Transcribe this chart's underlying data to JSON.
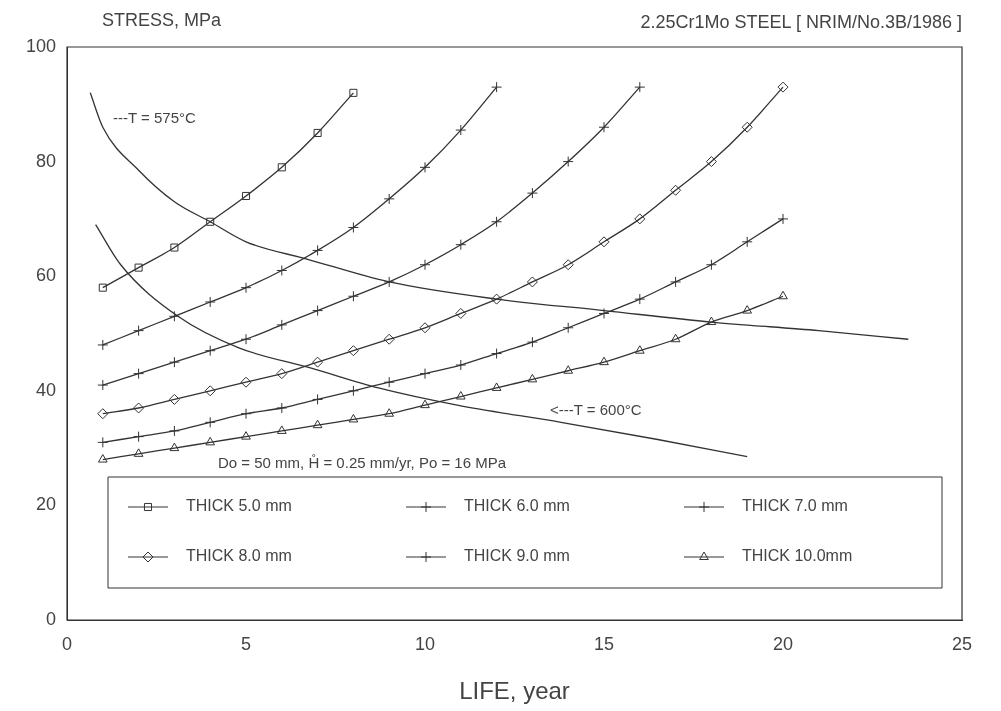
{
  "chart_data": {
    "type": "line",
    "title": "2.25Cr1Mo STEEL [ NRIM/No.3B/1986 ]",
    "ylabel": "STRESS, MPa",
    "xlabel": "LIFE, year",
    "xlim": [
      0,
      25
    ],
    "xticks": [
      0,
      5,
      10,
      15,
      20,
      25
    ],
    "ylim": [
      0,
      100
    ],
    "yticks": [
      0,
      20,
      40,
      60,
      80,
      100
    ],
    "grid": false,
    "legend": "bottom",
    "series": [
      {
        "name": "THICK 5.0 mm",
        "color": "#333333",
        "marker": "square",
        "x": [
          1,
          2,
          3,
          4,
          5,
          6,
          7,
          8
        ],
        "values": [
          58,
          61.5,
          65,
          69.5,
          74,
          79,
          85,
          92
        ]
      },
      {
        "name": "THICK 6.0 mm",
        "color": "#333333",
        "marker": "cross",
        "x": [
          1,
          2,
          3,
          4,
          5,
          6,
          7,
          8,
          9,
          10,
          11,
          12
        ],
        "values": [
          48,
          50.5,
          53,
          55.5,
          58,
          61,
          64.5,
          68.5,
          73.5,
          79,
          85.5,
          93
        ]
      },
      {
        "name": "THICK 7.0 mm",
        "color": "#333333",
        "marker": "cross",
        "x": [
          1,
          2,
          3,
          4,
          5,
          6,
          7,
          8,
          9,
          10,
          11,
          12,
          13,
          14,
          15,
          16
        ],
        "values": [
          41,
          43,
          45,
          47,
          49,
          51.5,
          54,
          56.5,
          59,
          62,
          65.5,
          69.5,
          74.5,
          80,
          86,
          93
        ]
      },
      {
        "name": "THICK 8.0 mm",
        "color": "#333333",
        "marker": "diamond",
        "x": [
          1,
          2,
          3,
          4,
          5,
          6,
          7,
          8,
          9,
          10,
          11,
          12,
          13,
          14,
          15,
          16,
          17,
          18,
          19,
          20
        ],
        "values": [
          36,
          37,
          38.5,
          40,
          41.5,
          43,
          45,
          47,
          49,
          51,
          53.5,
          56,
          59,
          62,
          66,
          70,
          75,
          80,
          86,
          93
        ]
      },
      {
        "name": "THICK 9.0 mm",
        "color": "#333333",
        "marker": "cross",
        "x": [
          1,
          2,
          3,
          4,
          5,
          6,
          7,
          8,
          9,
          10,
          11,
          12,
          13,
          14,
          15,
          16,
          17,
          18,
          19,
          20
        ],
        "values": [
          31,
          32,
          33,
          34.5,
          36,
          37,
          38.5,
          40,
          41.5,
          43,
          44.5,
          46.5,
          48.5,
          51,
          53.5,
          56,
          59,
          62,
          66,
          70
        ]
      },
      {
        "name": "THICK 10.0mm",
        "color": "#333333",
        "marker": "triangle",
        "x": [
          1,
          2,
          3,
          4,
          5,
          6,
          7,
          8,
          9,
          10,
          11,
          12,
          13,
          14,
          15,
          16,
          17,
          18,
          19,
          20
        ],
        "values": [
          28,
          29,
          30,
          31,
          32,
          33,
          34,
          35,
          36,
          37.5,
          39,
          40.5,
          42,
          43.5,
          45,
          47,
          49,
          52,
          54,
          56.5
        ]
      },
      {
        "color": "#333333",
        "marker": "none",
        "x": [
          0.65,
          1,
          2,
          3,
          4,
          5,
          6.7,
          9,
          12,
          15,
          18,
          21,
          23.5
        ],
        "values": [
          92,
          86,
          78.5,
          73,
          69.5,
          66,
          63,
          59,
          56,
          54,
          52,
          50.5,
          49
        ]
      },
      {
        "color": "#333333",
        "marker": "none",
        "x": [
          0.8,
          1.5,
          3.1,
          4.8,
          6.8,
          8.7,
          10.9,
          13.8,
          16.5,
          19
        ],
        "values": [
          69,
          62,
          53,
          47.5,
          44,
          40.5,
          37.5,
          34.5,
          31.5,
          28.5
        ]
      }
    ],
    "annotations": [
      "---T = 575°C",
      "<---T = 600°C",
      "Do = 50 mm, H̊ = 0.25 mm/yr, Po = 16 MPa"
    ]
  }
}
